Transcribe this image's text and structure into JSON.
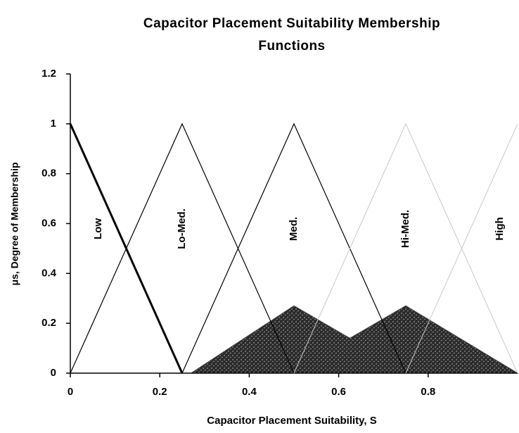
{
  "chart_data": {
    "type": "line",
    "title": "Capacitor Placement Suitability Membership Functions",
    "x_label": "Capacitor Placement Suitability, S",
    "y_label": "μs, Degree of Membership",
    "xlim": [
      0,
      1
    ],
    "xticks": [
      0,
      0.2,
      0.4,
      0.6,
      0.8
    ],
    "ylim": [
      0,
      1.2
    ],
    "yticks": [
      0,
      0.2,
      0.4,
      0.6,
      0.8,
      1,
      1.2
    ],
    "series": [
      {
        "name": "Low",
        "color": "#000000",
        "line_width": 3,
        "x": [
          0,
          0.25
        ],
        "values": [
          1,
          0
        ]
      },
      {
        "name": "Lo-Med.",
        "color": "#000000",
        "line_width": 1.2,
        "x": [
          0,
          0.25,
          0.5
        ],
        "values": [
          0,
          1,
          0
        ]
      },
      {
        "name": "Med.",
        "color": "#000000",
        "line_width": 1.2,
        "x": [
          0.25,
          0.5,
          0.75
        ],
        "values": [
          0,
          1,
          0
        ]
      },
      {
        "name": "Hi-Med.",
        "color": "#c8c8c8",
        "line_width": 1,
        "x": [
          0.5,
          0.75,
          1
        ],
        "values": [
          0,
          1,
          0
        ]
      },
      {
        "name": "High",
        "color": "#c8c8c8",
        "line_width": 1,
        "x": [
          0.75,
          1
        ],
        "values": [
          0,
          1
        ]
      }
    ],
    "area": {
      "color": "#3a3a3a",
      "x": [
        0.27,
        0.5,
        0.625,
        0.75,
        1
      ],
      "values": [
        0,
        0.27,
        0.14,
        0.27,
        0
      ]
    }
  }
}
